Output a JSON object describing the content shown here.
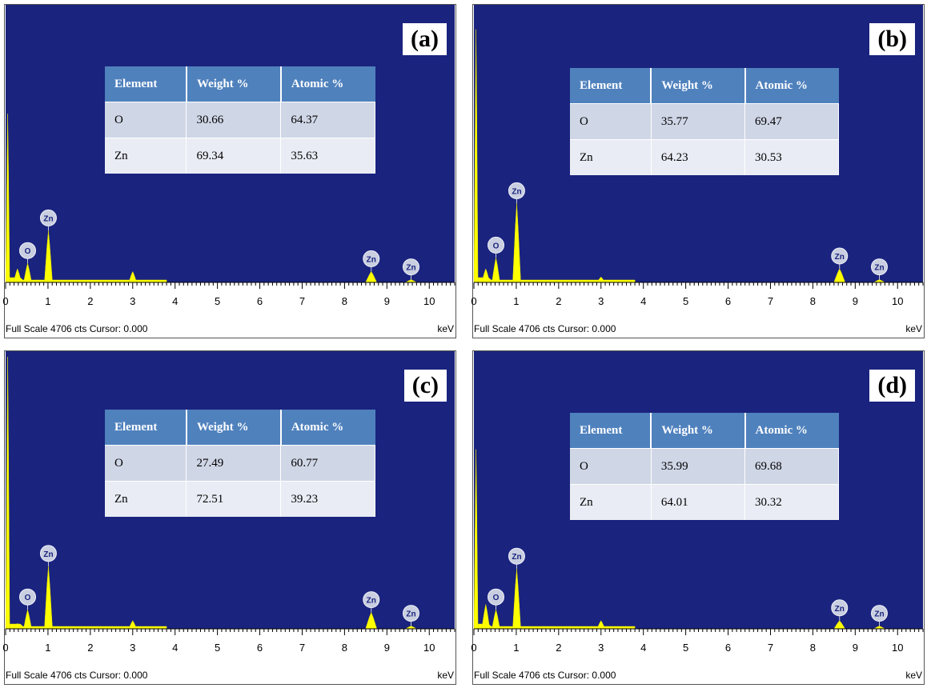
{
  "chart_data": [
    {
      "type": "area",
      "panel_label": "(a)",
      "xlabel": "keV",
      "x_ticks": [
        "0",
        "1",
        "2",
        "3",
        "4",
        "5",
        "6",
        "7",
        "8",
        "9",
        "10"
      ],
      "xlim": [
        0,
        10.6
      ],
      "footer": "Full Scale 4706 cts Cursor: 0.000",
      "table": {
        "headers": [
          "Element",
          "Weight %",
          "Atomic %"
        ],
        "rows": [
          [
            "O",
            "30.66",
            "64.37"
          ],
          [
            "Zn",
            "69.34",
            "35.63"
          ]
        ]
      },
      "peaks": [
        {
          "keV": 0.05,
          "height": 0.62
        },
        {
          "keV": 0.28,
          "height": 0.05
        },
        {
          "keV": 0.52,
          "height": 0.07
        },
        {
          "keV": 1.01,
          "height": 0.19
        },
        {
          "keV": 3.0,
          "height": 0.04
        },
        {
          "keV": 8.63,
          "height": 0.04
        },
        {
          "keV": 9.57,
          "height": 0.01
        }
      ],
      "markers": [
        {
          "label": "O",
          "keV": 0.52
        },
        {
          "label": "Zn",
          "keV": 1.01
        },
        {
          "label": "Zn",
          "keV": 8.63
        },
        {
          "label": "Zn",
          "keV": 9.57
        }
      ]
    },
    {
      "type": "area",
      "panel_label": "(b)",
      "xlabel": "keV",
      "x_ticks": [
        "0",
        "1",
        "2",
        "3",
        "4",
        "5",
        "6",
        "7",
        "8",
        "9",
        "10"
      ],
      "xlim": [
        0,
        10.6
      ],
      "footer": "Full Scale 4706 cts Cursor: 0.000",
      "table": {
        "headers": [
          "Element",
          "Weight %",
          "Atomic %"
        ],
        "rows": [
          [
            "O",
            "35.77",
            "69.47"
          ],
          [
            "Zn",
            "64.23",
            "30.53"
          ]
        ]
      },
      "peaks": [
        {
          "keV": 0.05,
          "height": 0.93
        },
        {
          "keV": 0.28,
          "height": 0.05
        },
        {
          "keV": 0.52,
          "height": 0.09
        },
        {
          "keV": 1.01,
          "height": 0.29
        },
        {
          "keV": 3.0,
          "height": 0.02
        },
        {
          "keV": 8.63,
          "height": 0.05
        },
        {
          "keV": 9.57,
          "height": 0.01
        }
      ],
      "markers": [
        {
          "label": "O",
          "keV": 0.52
        },
        {
          "label": "Zn",
          "keV": 1.01
        },
        {
          "label": "Zn",
          "keV": 8.63
        },
        {
          "label": "Zn",
          "keV": 9.57
        }
      ]
    },
    {
      "type": "area",
      "panel_label": "(c)",
      "xlabel": "keV",
      "x_ticks": [
        "0",
        "1",
        "2",
        "3",
        "4",
        "5",
        "6",
        "7",
        "8",
        "9",
        "10"
      ],
      "xlim": [
        0,
        10.6
      ],
      "footer": "Full Scale 4706 cts Cursor: 0.000",
      "table": {
        "headers": [
          "Element",
          "Weight %",
          "Atomic %"
        ],
        "rows": [
          [
            "O",
            "27.49",
            "60.77"
          ],
          [
            "Zn",
            "72.51",
            "39.23"
          ]
        ]
      },
      "peaks": [
        {
          "keV": 0.05,
          "height": 1.0
        },
        {
          "keV": 0.28,
          "height": 0.02
        },
        {
          "keV": 0.52,
          "height": 0.07
        },
        {
          "keV": 1.01,
          "height": 0.23
        },
        {
          "keV": 3.0,
          "height": 0.03
        },
        {
          "keV": 8.63,
          "height": 0.06
        },
        {
          "keV": 9.57,
          "height": 0.01
        }
      ],
      "markers": [
        {
          "label": "O",
          "keV": 0.52
        },
        {
          "label": "Zn",
          "keV": 1.01
        },
        {
          "label": "Zn",
          "keV": 8.63
        },
        {
          "label": "Zn",
          "keV": 9.57
        }
      ]
    },
    {
      "type": "area",
      "panel_label": "(d)",
      "xlabel": "keV",
      "x_ticks": [
        "0",
        "1",
        "2",
        "3",
        "4",
        "5",
        "6",
        "7",
        "8",
        "9",
        "10"
      ],
      "xlim": [
        0,
        10.6
      ],
      "footer": "Full Scale 4706 cts Cursor: 0.000",
      "table": {
        "headers": [
          "Element",
          "Weight %",
          "Atomic %"
        ],
        "rows": [
          [
            "O",
            "35.99",
            "69.68"
          ],
          [
            "Zn",
            "64.01",
            "30.32"
          ]
        ]
      },
      "peaks": [
        {
          "keV": 0.05,
          "height": 0.66
        },
        {
          "keV": 0.28,
          "height": 0.09
        },
        {
          "keV": 0.52,
          "height": 0.07
        },
        {
          "keV": 1.01,
          "height": 0.22
        },
        {
          "keV": 3.0,
          "height": 0.03
        },
        {
          "keV": 8.63,
          "height": 0.03
        },
        {
          "keV": 9.57,
          "height": 0.01
        }
      ],
      "markers": [
        {
          "label": "O",
          "keV": 0.52
        },
        {
          "label": "Zn",
          "keV": 1.01
        },
        {
          "label": "Zn",
          "keV": 8.63
        },
        {
          "label": "Zn",
          "keV": 9.57
        }
      ]
    }
  ]
}
